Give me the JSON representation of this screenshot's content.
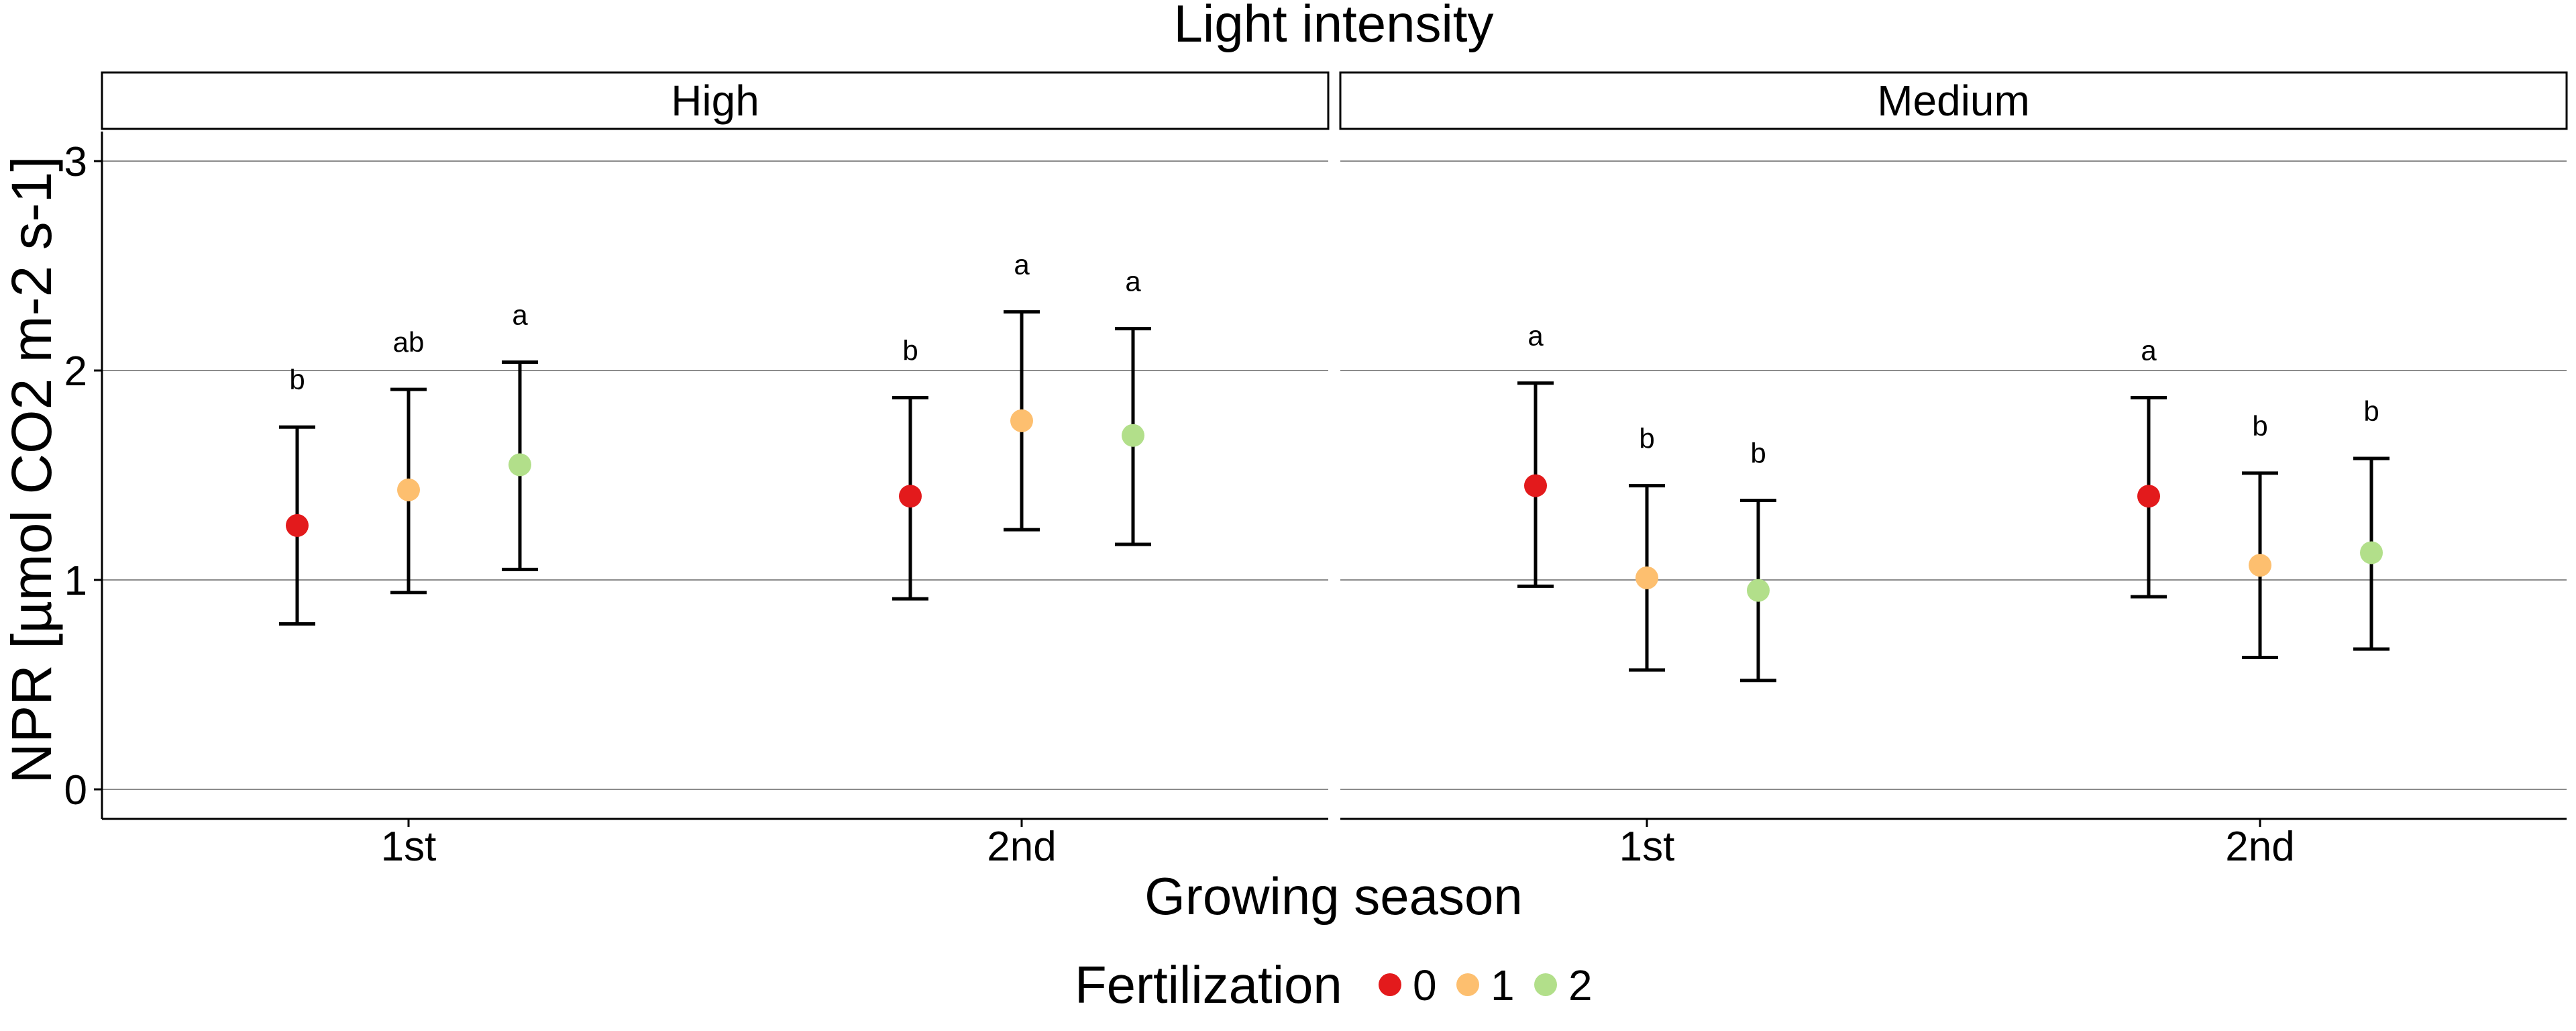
{
  "chart_data": {
    "type": "scatter",
    "title": "Light intensity",
    "xlabel": "Growing season",
    "ylabel": "NPR [µmol CO2 m-2 s-1]",
    "ylim": [
      -0.15,
      3.15
    ],
    "y_ticks": [
      0,
      1,
      2,
      3
    ],
    "grid": true,
    "categories": [
      "1st",
      "2nd"
    ],
    "legend": {
      "title": "Fertilization",
      "position": "bottom",
      "entries": [
        {
          "label": "0",
          "color": "#e31a1c"
        },
        {
          "label": "1",
          "color": "#fdbf6f"
        },
        {
          "label": "2",
          "color": "#b2df8a"
        }
      ]
    },
    "panels": [
      {
        "label": "High",
        "series": [
          {
            "group": "0",
            "mean": [
              1.26,
              1.4
            ],
            "lower": [
              0.79,
              0.91
            ],
            "upper": [
              1.73,
              1.87
            ],
            "letters": [
              "b",
              "b"
            ]
          },
          {
            "group": "1",
            "mean": [
              1.43,
              1.76
            ],
            "lower": [
              0.94,
              1.24
            ],
            "upper": [
              1.91,
              2.28
            ],
            "letters": [
              "ab",
              "a"
            ]
          },
          {
            "group": "2",
            "mean": [
              1.55,
              1.69
            ],
            "lower": [
              1.05,
              1.17
            ],
            "upper": [
              2.04,
              2.2
            ],
            "letters": [
              "a",
              "a"
            ]
          }
        ]
      },
      {
        "label": "Medium",
        "series": [
          {
            "group": "0",
            "mean": [
              1.45,
              1.4
            ],
            "lower": [
              0.97,
              0.92
            ],
            "upper": [
              1.94,
              1.87
            ],
            "letters": [
              "a",
              "a"
            ]
          },
          {
            "group": "1",
            "mean": [
              1.01,
              1.07
            ],
            "lower": [
              0.57,
              0.63
            ],
            "upper": [
              1.45,
              1.51
            ],
            "letters": [
              "b",
              "b"
            ]
          },
          {
            "group": "2",
            "mean": [
              0.95,
              1.13
            ],
            "lower": [
              0.52,
              0.67
            ],
            "upper": [
              1.38,
              1.58
            ],
            "letters": [
              "b",
              "b"
            ]
          }
        ]
      }
    ]
  }
}
